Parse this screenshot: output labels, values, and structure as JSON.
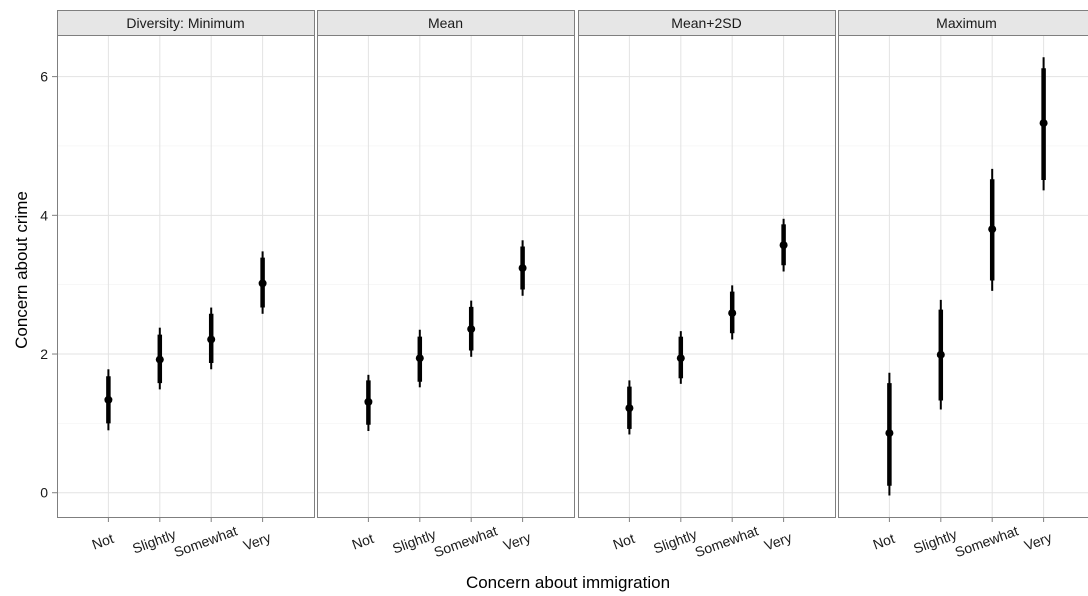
{
  "chart_data": {
    "type": "pointrange",
    "xlabel": "Concern about immigration",
    "ylabel": "Concern about crime",
    "categories": [
      "Not",
      "Slightly",
      "Somewhat",
      "Very"
    ],
    "ylim": [
      -0.35,
      6.6
    ],
    "y_ticks": [
      0,
      2,
      4,
      6
    ],
    "grid": true,
    "panels": [
      {
        "name": "Diversity: Minimum",
        "points": [
          {
            "x": "Not",
            "y": 1.34,
            "inner": [
              1.0,
              1.68
            ],
            "outer": [
              0.9,
              1.78
            ]
          },
          {
            "x": "Slightly",
            "y": 1.92,
            "inner": [
              1.58,
              2.28
            ],
            "outer": [
              1.49,
              2.38
            ]
          },
          {
            "x": "Somewhat",
            "y": 2.21,
            "inner": [
              1.87,
              2.58
            ],
            "outer": [
              1.78,
              2.67
            ]
          },
          {
            "x": "Very",
            "y": 3.02,
            "inner": [
              2.67,
              3.39
            ],
            "outer": [
              2.58,
              3.48
            ]
          }
        ]
      },
      {
        "name": "Mean",
        "points": [
          {
            "x": "Not",
            "y": 1.31,
            "inner": [
              0.98,
              1.62
            ],
            "outer": [
              0.89,
              1.7
            ]
          },
          {
            "x": "Slightly",
            "y": 1.94,
            "inner": [
              1.6,
              2.25
            ],
            "outer": [
              1.52,
              2.35
            ]
          },
          {
            "x": "Somewhat",
            "y": 2.36,
            "inner": [
              2.05,
              2.68
            ],
            "outer": [
              1.96,
              2.77
            ]
          },
          {
            "x": "Very",
            "y": 3.24,
            "inner": [
              2.93,
              3.55
            ],
            "outer": [
              2.84,
              3.64
            ]
          }
        ]
      },
      {
        "name": "Mean+2SD",
        "points": [
          {
            "x": "Not",
            "y": 1.22,
            "inner": [
              0.92,
              1.53
            ],
            "outer": [
              0.84,
              1.62
            ]
          },
          {
            "x": "Slightly",
            "y": 1.94,
            "inner": [
              1.65,
              2.25
            ],
            "outer": [
              1.57,
              2.33
            ]
          },
          {
            "x": "Somewhat",
            "y": 2.59,
            "inner": [
              2.3,
              2.9
            ],
            "outer": [
              2.21,
              2.99
            ]
          },
          {
            "x": "Very",
            "y": 3.57,
            "inner": [
              3.28,
              3.87
            ],
            "outer": [
              3.19,
              3.95
            ]
          }
        ]
      },
      {
        "name": "Maximum",
        "points": [
          {
            "x": "Not",
            "y": 0.86,
            "inner": [
              0.1,
              1.58
            ],
            "outer": [
              -0.04,
              1.73
            ]
          },
          {
            "x": "Slightly",
            "y": 1.99,
            "inner": [
              1.33,
              2.64
            ],
            "outer": [
              1.2,
              2.78
            ]
          },
          {
            "x": "Somewhat",
            "y": 3.8,
            "inner": [
              3.06,
              4.52
            ],
            "outer": [
              2.91,
              4.67
            ]
          },
          {
            "x": "Very",
            "y": 5.33,
            "inner": [
              4.51,
              6.12
            ],
            "outer": [
              4.36,
              6.28
            ]
          }
        ]
      }
    ]
  }
}
